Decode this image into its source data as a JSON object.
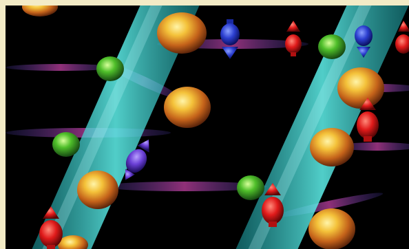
{
  "image": {
    "description_tag": "illustration",
    "colors": {
      "border": "#f3ebc6",
      "background": "#000000",
      "beam": "#27c7c9",
      "spin_up": "#e01a1a",
      "spin_down": "#2c3fd0",
      "spin_tilted": "#6a3fd6",
      "sphere_gold": "#e8a21c",
      "sphere_green": "#3fae2c",
      "orbital_ring": "#6a4fb0"
    },
    "icons": [
      "spin-up-arrow-icon",
      "spin-down-arrow-icon",
      "tilted-spin-arrow-icon",
      "gold-sphere-icon",
      "green-sphere-icon",
      "light-beam"
    ]
  }
}
